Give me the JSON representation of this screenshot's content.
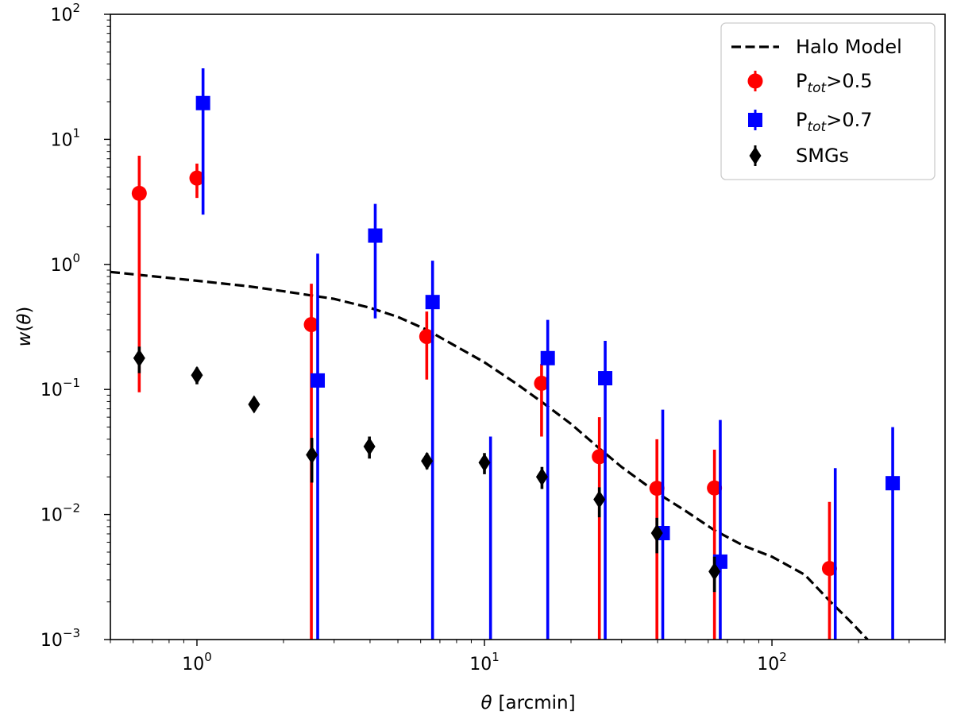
{
  "chart_data": {
    "type": "scatter",
    "title": "",
    "xlabel_symbol": "θ",
    "xlabel_unit": "[arcmin]",
    "ylabel_prefix": "w(",
    "ylabel_symbol": "θ",
    "ylabel_suffix": ")",
    "xscale": "log",
    "yscale": "log",
    "xlim": [
      0.5,
      400
    ],
    "ylim": [
      0.001,
      100
    ],
    "x_ticks": [
      {
        "base": "10",
        "exp": "0",
        "value": 1
      },
      {
        "base": "10",
        "exp": "1",
        "value": 10
      },
      {
        "base": "10",
        "exp": "2",
        "value": 100
      }
    ],
    "y_ticks": [
      {
        "base": "10",
        "exp": "−3",
        "value": 0.001
      },
      {
        "base": "10",
        "exp": "−2",
        "value": 0.01
      },
      {
        "base": "10",
        "exp": "−1",
        "value": 0.1
      },
      {
        "base": "10",
        "exp": "0",
        "value": 1
      },
      {
        "base": "10",
        "exp": "1",
        "value": 10
      },
      {
        "base": "10",
        "exp": "2",
        "value": 100
      }
    ],
    "legend_position": "top-right",
    "legend": [
      {
        "key": "halo",
        "kind": "line",
        "label_main": "Halo Model",
        "label_sub": "",
        "label_rest": ""
      },
      {
        "key": "p05",
        "kind": "circle",
        "label_main": "P",
        "label_sub": "tot",
        "label_rest": ">0.5"
      },
      {
        "key": "p07",
        "kind": "square",
        "label_main": "P",
        "label_sub": "tot",
        "label_rest": ">0.7"
      },
      {
        "key": "smg",
        "kind": "diamond",
        "label_main": "SMGs",
        "label_sub": "",
        "label_rest": ""
      }
    ],
    "series": [
      {
        "name": "Halo Model",
        "key": "halo",
        "style": "dashed-line",
        "color": "#000000",
        "points": [
          {
            "x": 0.5,
            "y": 0.87
          },
          {
            "x": 1.0,
            "y": 0.74
          },
          {
            "x": 1.5,
            "y": 0.67
          },
          {
            "x": 2.0,
            "y": 0.61
          },
          {
            "x": 3.0,
            "y": 0.53
          },
          {
            "x": 4.0,
            "y": 0.45
          },
          {
            "x": 5.0,
            "y": 0.38
          },
          {
            "x": 6.3,
            "y": 0.3
          },
          {
            "x": 8.0,
            "y": 0.22
          },
          {
            "x": 10.0,
            "y": 0.165
          },
          {
            "x": 13.0,
            "y": 0.11
          },
          {
            "x": 16.0,
            "y": 0.078
          },
          {
            "x": 20.0,
            "y": 0.053
          },
          {
            "x": 25.0,
            "y": 0.034
          },
          {
            "x": 30.0,
            "y": 0.024
          },
          {
            "x": 40.0,
            "y": 0.0148
          },
          {
            "x": 50.0,
            "y": 0.0107
          },
          {
            "x": 63.0,
            "y": 0.0075
          },
          {
            "x": 80.0,
            "y": 0.0056
          },
          {
            "x": 100.0,
            "y": 0.0046
          },
          {
            "x": 130.0,
            "y": 0.0033
          },
          {
            "x": 160.0,
            "y": 0.002
          },
          {
            "x": 190.0,
            "y": 0.00135
          },
          {
            "x": 215.0,
            "y": 0.001
          }
        ]
      },
      {
        "name": "Ptot>0.5",
        "key": "p05",
        "style": "circle",
        "color": "#ff0000",
        "points": [
          {
            "x": 0.63,
            "y": 3.7,
            "lo": 0.095,
            "hi": 7.4
          },
          {
            "x": 1.0,
            "y": 4.9,
            "lo": 3.4,
            "hi": 6.4
          },
          {
            "x": 2.5,
            "y": 0.33,
            "lo": 0.001,
            "hi": 0.7
          },
          {
            "x": 6.3,
            "y": 0.265,
            "lo": 0.12,
            "hi": 0.42
          },
          {
            "x": 15.8,
            "y": 0.112,
            "lo": 0.042,
            "hi": 0.16
          },
          {
            "x": 25.1,
            "y": 0.029,
            "lo": 0.001,
            "hi": 0.06
          },
          {
            "x": 39.8,
            "y": 0.0162,
            "lo": 0.001,
            "hi": 0.04
          },
          {
            "x": 63.1,
            "y": 0.0163,
            "lo": 0.001,
            "hi": 0.033
          },
          {
            "x": 158.5,
            "y": 0.0037,
            "lo": 0.001,
            "hi": 0.0126
          }
        ]
      },
      {
        "name": "Ptot>0.7",
        "key": "p07",
        "style": "square",
        "color": "#0000ff",
        "points": [
          {
            "x": 1.05,
            "y": 19.5,
            "lo": 2.5,
            "hi": 37
          },
          {
            "x": 2.63,
            "y": 0.118,
            "lo": 0.001,
            "hi": 1.22
          },
          {
            "x": 4.17,
            "y": 1.7,
            "lo": 0.37,
            "hi": 3.05
          },
          {
            "x": 6.6,
            "y": 0.5,
            "lo": 0.001,
            "hi": 1.07
          },
          {
            "x": 10.5,
            "y": null,
            "lo": 0.001,
            "hi": 0.042
          },
          {
            "x": 16.6,
            "y": 0.178,
            "lo": 0.001,
            "hi": 0.36
          },
          {
            "x": 26.3,
            "y": 0.123,
            "lo": 0.001,
            "hi": 0.245
          },
          {
            "x": 41.7,
            "y": 0.0071,
            "lo": 0.001,
            "hi": 0.069
          },
          {
            "x": 66.1,
            "y": 0.0042,
            "lo": 0.001,
            "hi": 0.057
          },
          {
            "x": 166.0,
            "y": null,
            "lo": 0.001,
            "hi": 0.0235
          },
          {
            "x": 263.0,
            "y": 0.0178,
            "lo": 0.001,
            "hi": 0.05
          }
        ]
      },
      {
        "name": "SMGs",
        "key": "smg",
        "style": "diamond",
        "color": "#000000",
        "points": [
          {
            "x": 0.63,
            "y": 0.178,
            "lo": 0.135,
            "hi": 0.22
          },
          {
            "x": 1.0,
            "y": 0.13,
            "lo": 0.11,
            "hi": 0.15
          },
          {
            "x": 1.58,
            "y": 0.076,
            "lo": 0.068,
            "hi": 0.084
          },
          {
            "x": 2.51,
            "y": 0.03,
            "lo": 0.018,
            "hi": 0.041
          },
          {
            "x": 3.98,
            "y": 0.035,
            "lo": 0.028,
            "hi": 0.042
          },
          {
            "x": 6.31,
            "y": 0.0268,
            "lo": 0.023,
            "hi": 0.031
          },
          {
            "x": 10.0,
            "y": 0.026,
            "lo": 0.021,
            "hi": 0.031
          },
          {
            "x": 15.85,
            "y": 0.02,
            "lo": 0.016,
            "hi": 0.024
          },
          {
            "x": 25.1,
            "y": 0.0132,
            "lo": 0.0095,
            "hi": 0.0165
          },
          {
            "x": 39.8,
            "y": 0.0071,
            "lo": 0.0049,
            "hi": 0.0094
          },
          {
            "x": 63.1,
            "y": 0.0035,
            "lo": 0.0024,
            "hi": 0.0046
          }
        ]
      }
    ]
  }
}
